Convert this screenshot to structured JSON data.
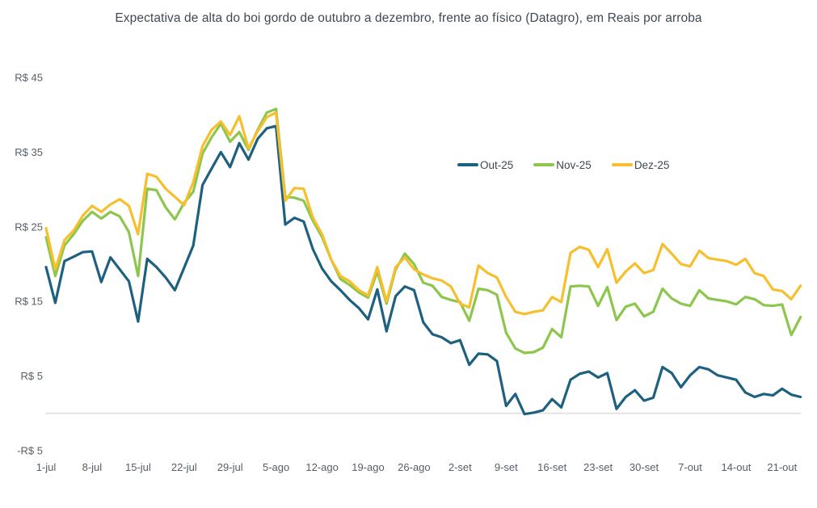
{
  "title": "Expectativa de alta do boi gordo de outubro a dezembro, frente ao físico (Datagro), em Reais por arroba",
  "chart_data": {
    "type": "line",
    "title": "Expectativa de alta do boi gordo de outubro a dezembro, frente ao físico (Datagro), em Reais por arroba",
    "unit": "Reais por arroba",
    "grid": "zero-baseline-only",
    "legend_position": "center-right",
    "baseline": {
      "value": 0,
      "color": "#d9d9d9"
    },
    "y_ticks": [
      {
        "label": "R$ 45",
        "value": 45
      },
      {
        "label": "R$ 35",
        "value": 35
      },
      {
        "label": "R$ 25",
        "value": 25
      },
      {
        "label": "R$ 15",
        "value": 15
      },
      {
        "label": "R$ 5",
        "value": 5
      },
      {
        "label": "-R$ 5",
        "value": -5
      }
    ],
    "x_tick_step": 5,
    "x_tick_labels": [
      "1-jul",
      "8-jul",
      "15-jul",
      "22-jul",
      "29-jul",
      "5-ago",
      "12-ago",
      "19-ago",
      "26-ago",
      "2-set",
      "9-set",
      "16-set",
      "23-set",
      "30-set",
      "7-out",
      "14-out",
      "21-out"
    ],
    "series": [
      {
        "name": "Out-25",
        "color": "#1e607f",
        "values": [
          19.6,
          14.8,
          20.4,
          21.0,
          21.6,
          21.7,
          17.6,
          20.9,
          19.3,
          17.7,
          12.3,
          20.7,
          19.6,
          18.2,
          16.5,
          19.5,
          22.5,
          30.6,
          32.8,
          35.0,
          33.0,
          36.2,
          34.0,
          36.8,
          38.2,
          38.5,
          25.3,
          26.2,
          25.7,
          22.0,
          19.4,
          17.7,
          16.5,
          15.2,
          14.1,
          12.6,
          16.6,
          11.0,
          15.7,
          17.0,
          16.5,
          12.2,
          10.6,
          10.2,
          9.4,
          9.8,
          6.5,
          8.0,
          7.9,
          7.0,
          1.0,
          2.6,
          -0.1,
          0.1,
          0.4,
          1.9,
          0.8,
          4.5,
          5.3,
          5.6,
          4.8,
          5.4,
          0.6,
          2.2,
          3.1,
          1.7,
          2.1,
          6.2,
          5.4,
          3.5,
          5.1,
          6.2,
          5.9,
          5.1,
          4.8,
          4.5,
          2.8,
          2.2,
          2.6,
          2.4,
          3.3,
          2.5,
          2.2
        ]
      },
      {
        "name": "Nov-25",
        "color": "#8dc64d",
        "values": [
          23.6,
          18.4,
          22.5,
          24.0,
          25.8,
          27.0,
          26.1,
          27.0,
          26.4,
          24.3,
          18.4,
          30.1,
          29.9,
          27.6,
          26.0,
          28.2,
          29.7,
          34.8,
          37.0,
          38.8,
          36.4,
          37.7,
          35.3,
          38.0,
          40.3,
          40.8,
          29.0,
          28.9,
          28.5,
          25.8,
          23.6,
          20.6,
          18.0,
          17.2,
          16.2,
          15.5,
          19.0,
          14.7,
          19.3,
          21.4,
          20.0,
          17.5,
          17.1,
          15.6,
          15.2,
          14.9,
          12.4,
          16.7,
          16.5,
          15.9,
          10.8,
          8.7,
          8.1,
          8.2,
          8.8,
          11.3,
          10.2,
          17.0,
          17.1,
          17.0,
          14.4,
          16.9,
          12.5,
          14.3,
          14.7,
          13.0,
          13.6,
          16.7,
          15.4,
          14.7,
          14.4,
          16.5,
          15.4,
          15.2,
          15.0,
          14.6,
          15.6,
          15.3,
          14.5,
          14.4,
          14.6,
          10.5,
          12.9
        ]
      },
      {
        "name": "Dez-25",
        "color": "#f7bf2e",
        "values": [
          24.8,
          19.3,
          23.2,
          24.5,
          26.5,
          27.8,
          27.0,
          28.0,
          28.7,
          27.8,
          24.0,
          32.1,
          31.7,
          30.1,
          29.0,
          27.9,
          31.0,
          35.8,
          38.0,
          39.1,
          37.3,
          39.8,
          35.5,
          37.8,
          39.7,
          40.3,
          28.5,
          30.2,
          30.1,
          26.2,
          24.0,
          20.6,
          18.4,
          17.7,
          16.5,
          15.8,
          19.6,
          15.0,
          19.6,
          20.9,
          19.3,
          18.6,
          18.1,
          17.8,
          17.0,
          14.7,
          14.2,
          19.8,
          18.8,
          18.2,
          15.6,
          13.6,
          13.3,
          13.6,
          13.8,
          15.6,
          14.9,
          21.5,
          22.3,
          21.9,
          19.6,
          22.0,
          17.5,
          19.0,
          20.1,
          18.8,
          19.2,
          22.7,
          21.4,
          20.0,
          19.7,
          21.8,
          20.8,
          20.6,
          20.4,
          19.9,
          20.7,
          18.8,
          18.4,
          16.6,
          16.4,
          15.3,
          17.1
        ]
      }
    ]
  }
}
